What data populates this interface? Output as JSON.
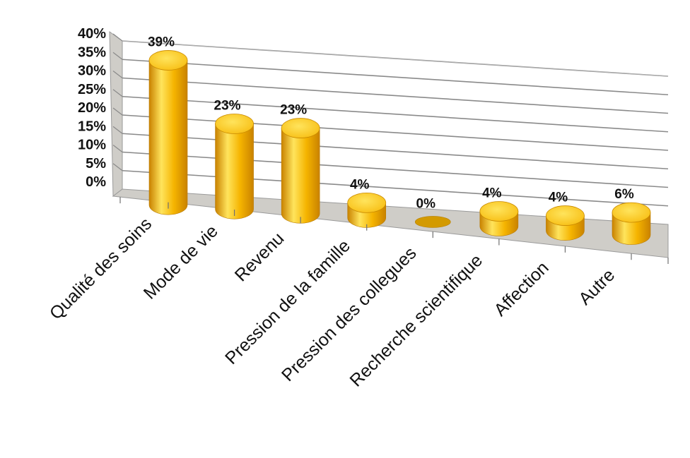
{
  "chart_data": {
    "type": "bar",
    "style": "3d-cylinder",
    "categories": [
      "Qualité des soins",
      "Mode de vie",
      "Revenu",
      "Pression de la famille",
      "Pression des collegues",
      "Recherche scientifique",
      "Affection",
      "Autre"
    ],
    "values": [
      39,
      23,
      23,
      4,
      0,
      4,
      4,
      6
    ],
    "value_labels": [
      "39%",
      "23%",
      "23%",
      "4%",
      "0%",
      "4%",
      "4%",
      "6%"
    ],
    "ytick_labels": [
      "0%",
      "5%",
      "10%",
      "15%",
      "20%",
      "25%",
      "30%",
      "35%",
      "40%"
    ],
    "yticks": [
      0,
      5,
      10,
      15,
      20,
      25,
      30,
      35,
      40
    ],
    "ylim": [
      0,
      40
    ],
    "title": "",
    "xlabel": "",
    "ylabel": "",
    "grid": true,
    "legend": "none",
    "colors": {
      "bar": "#f5b400",
      "bar_highlight": "#ffe45c",
      "bar_shadow": "#c98200",
      "bar_top": "#f7bc10",
      "floor": "#cfcdc8",
      "side_wall": "#cfcdc8",
      "gridline": "#8a8a8a"
    }
  }
}
